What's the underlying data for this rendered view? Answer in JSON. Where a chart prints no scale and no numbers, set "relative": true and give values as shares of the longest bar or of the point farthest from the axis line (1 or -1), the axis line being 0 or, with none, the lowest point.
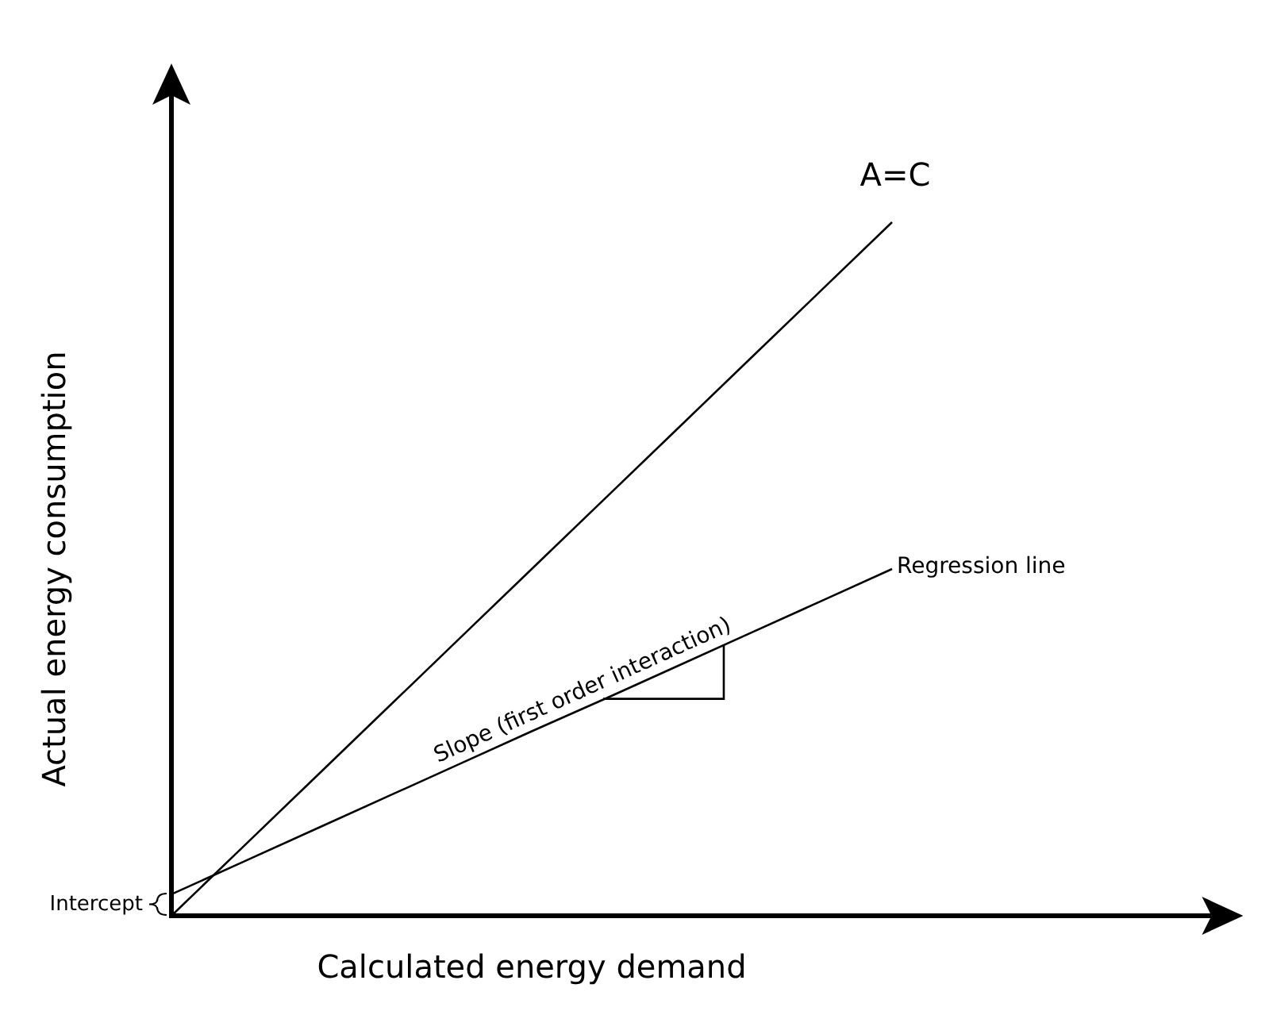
{
  "chart_data": {
    "type": "line",
    "relative": true,
    "xlabel": "Calculated energy demand",
    "ylabel": "Actual energy consumption",
    "categories": [
      null,
      null,
      null,
      null,
      null,
      null,
      null,
      null,
      null,
      null,
      null
    ],
    "tick_labels": false,
    "grid": false,
    "legend": false,
    "marker": "none",
    "line_style": "solid",
    "series": [
      {
        "name": "A=C",
        "color": "#000000",
        "values": [
          0,
          0.1,
          0.2,
          0.3,
          0.4,
          0.5,
          0.6,
          0.7,
          0.8,
          0.9,
          1
        ]
      },
      {
        "name": "Regression line",
        "color": "#000000",
        "values": [
          0.031,
          0.078,
          0.125,
          0.172,
          0.219,
          0.266,
          0.312,
          0.359,
          0.406,
          0.453,
          0.5
        ]
      }
    ],
    "annotations": [
      "Slope (first order interaction)",
      "Intercept"
    ]
  }
}
